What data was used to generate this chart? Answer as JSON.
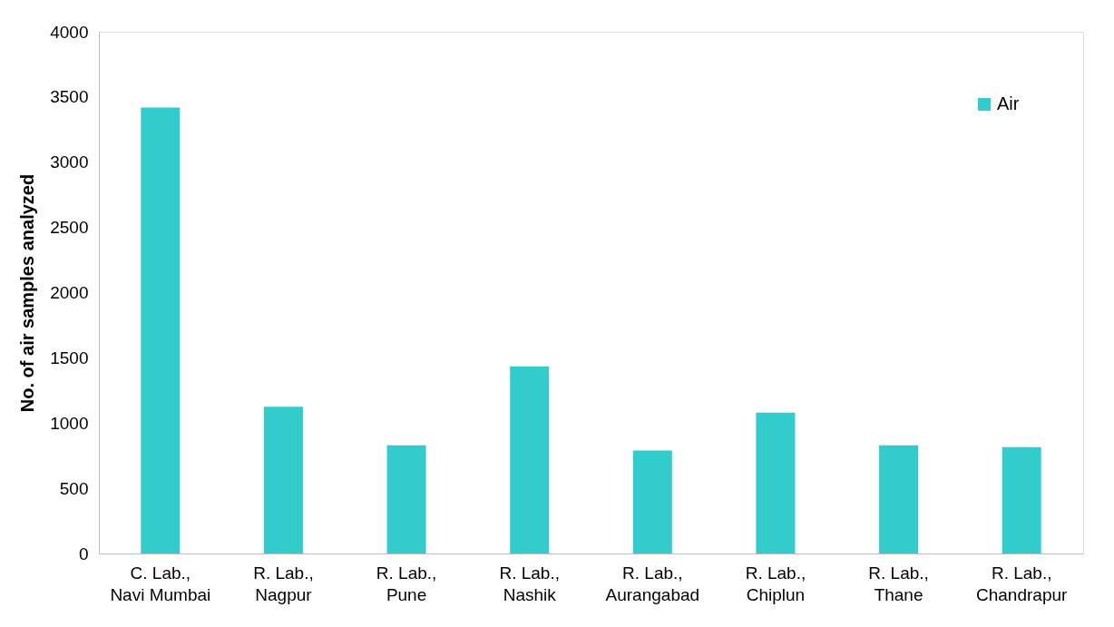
{
  "chart_data": {
    "type": "bar",
    "ylabel": "No. of air samples analyzed",
    "categories": [
      "C. Lab., Navi Mumbai",
      "R. Lab., Nagpur",
      "R. Lab., Pune",
      "R. Lab., Nashik",
      "R. Lab., Aurangabad",
      "R. Lab., Chiplun",
      "R. Lab., Thane",
      "R. Lab., Chandrapur"
    ],
    "series": [
      {
        "name": "Air",
        "color": "#33cccc",
        "values": [
          3420,
          1125,
          830,
          1435,
          790,
          1080,
          830,
          815
        ]
      }
    ],
    "ylim": [
      0,
      4000
    ],
    "yticks": [
      0,
      500,
      1000,
      1500,
      2000,
      2500,
      3000,
      3500,
      4000
    ],
    "grid": false,
    "legend": "top right"
  }
}
